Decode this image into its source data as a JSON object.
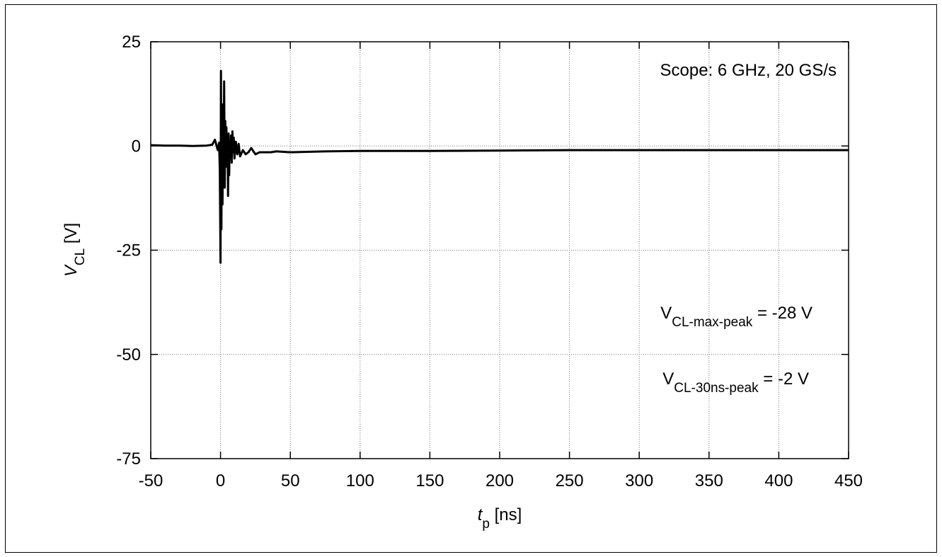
{
  "chart_data": {
    "type": "line",
    "title": "",
    "xlabel": {
      "main": "t",
      "sub": "p",
      "unit": "[ns]"
    },
    "ylabel": {
      "main": "V",
      "sub": "CL",
      "unit": "[V]"
    },
    "xlim": [
      -50,
      450
    ],
    "ylim": [
      -75,
      25
    ],
    "x_ticks": [
      -50,
      0,
      50,
      100,
      150,
      200,
      250,
      300,
      350,
      400,
      450
    ],
    "y_ticks": [
      -75,
      -50,
      -25,
      0,
      25
    ],
    "grid": true,
    "line_color": "#000000",
    "series": [
      {
        "x": [
          -50,
          -40,
          -30,
          -20,
          -10,
          -6,
          -4,
          -2,
          -1,
          -0.5,
          0,
          0.3,
          0.6,
          1,
          1.4,
          1.8,
          2.2,
          2.6,
          3,
          3.4,
          3.8,
          4.2,
          4.6,
          5,
          5.4,
          5.8,
          6.2,
          6.6,
          7,
          7.5,
          8,
          8.5,
          9,
          9.5,
          10,
          11,
          12,
          13,
          14,
          16,
          18,
          20,
          22,
          25,
          28,
          32,
          36,
          40,
          50,
          75,
          100,
          150,
          200,
          250,
          300,
          350,
          400,
          450
        ],
        "y": [
          0.2,
          0.1,
          0.1,
          0.0,
          0.1,
          0.3,
          1.5,
          -1.0,
          0.8,
          -6.0,
          -28.0,
          18.0,
          -20.0,
          10.0,
          -14.0,
          4.0,
          -8.0,
          15.5,
          -10.0,
          6.0,
          -3.0,
          4.5,
          -5.0,
          2.0,
          -12.0,
          3.0,
          -7.0,
          1.0,
          -2.0,
          2.5,
          -4.0,
          3.5,
          -1.5,
          2.0,
          -3.0,
          1.0,
          -2.0,
          0.5,
          -2.5,
          -1.0,
          -2.0,
          -1.5,
          -0.5,
          -2.0,
          -1.5,
          -1.5,
          -1.5,
          -1.3,
          -1.5,
          -1.3,
          -1.2,
          -1.2,
          -1.1,
          -1.0,
          -1.0,
          -1.0,
          -1.0,
          -1.0
        ]
      }
    ],
    "annotations": [
      {
        "text": "Scope: 6 GHz, 20 GS/s",
        "position": "top-right"
      },
      {
        "main": "V",
        "sub": "CL-max-peak",
        "rest": " = -28 V",
        "position": "right"
      },
      {
        "main": "V",
        "sub": "CL-30ns-peak",
        "rest": " = -2 V",
        "position": "right"
      }
    ]
  }
}
